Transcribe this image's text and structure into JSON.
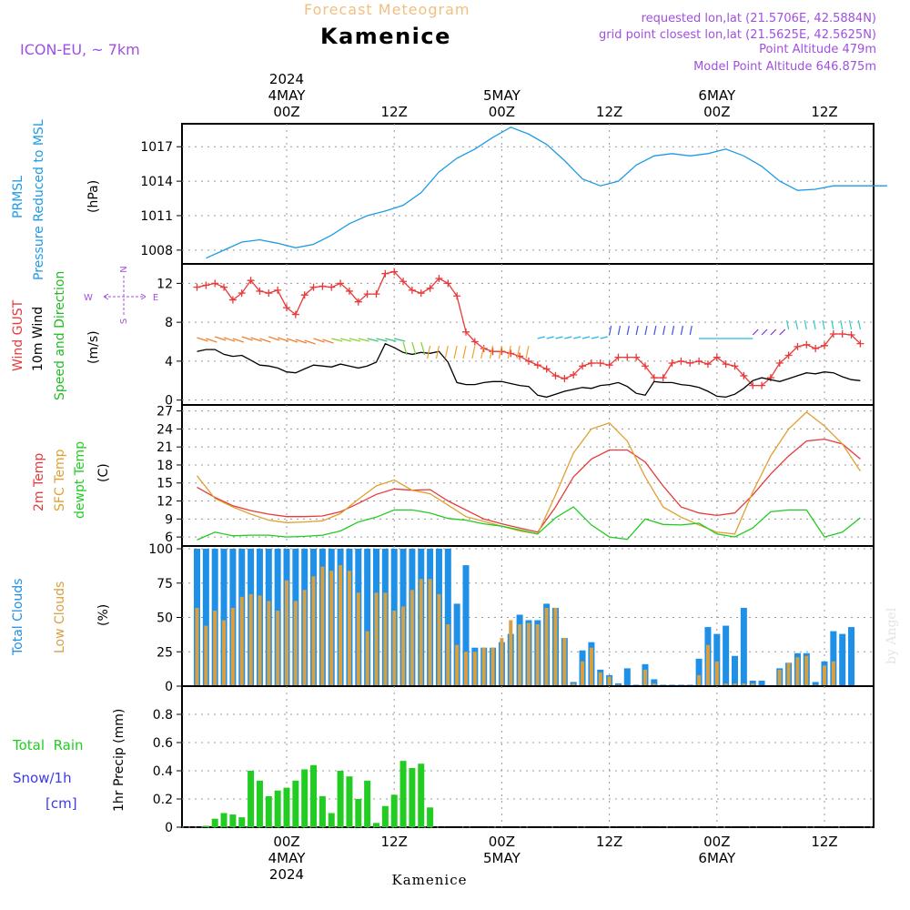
{
  "header": {
    "subtitle": "Forecast Meteogram",
    "title": "Kamenice",
    "model": "ICON-EU, ~ 7km",
    "requested": "requested lon,lat (21.5706E, 42.5884N)",
    "gridpoint": "grid point closest lon,lat (21.5625E, 42.5625N)",
    "point_altitude": "Point Altitude 479m",
    "model_altitude": "Model Point Altitude 646.875m",
    "watermark": "by Angel",
    "footer_location": "Kamenice"
  },
  "time_axis": {
    "top_labels": [
      {
        "line1": "2024",
        "line2": "4MAY",
        "line3": "00Z"
      },
      {
        "line1": "",
        "line2": "",
        "line3": "12Z"
      },
      {
        "line1": "",
        "line2": "5MAY",
        "line3": "00Z"
      },
      {
        "line1": "",
        "line2": "",
        "line3": "12Z"
      },
      {
        "line1": "",
        "line2": "6MAY",
        "line3": "00Z"
      },
      {
        "line1": "",
        "line2": "",
        "line3": "12Z"
      }
    ],
    "bottom_labels": [
      {
        "line1": "00Z",
        "line2": "4MAY",
        "line3": "2024"
      },
      {
        "line1": "12Z",
        "line2": "",
        "line3": ""
      },
      {
        "line1": "00Z",
        "line2": "5MAY",
        "line3": ""
      },
      {
        "line1": "12Z",
        "line2": "",
        "line3": ""
      },
      {
        "line1": "00Z",
        "line2": "6MAY",
        "line3": ""
      },
      {
        "line1": "12Z",
        "line2": "",
        "line3": ""
      }
    ]
  },
  "colors": {
    "pressure": "#1e9be6",
    "gust": "#e83a3a",
    "wind": "#000000",
    "wind_label": "#22bb22",
    "t2m": "#e83a3a",
    "tsfc": "#e0a030",
    "dewpt": "#22cc22",
    "total_cloud": "#1e90e8",
    "low_cloud": "#d8a040",
    "rain": "#22cc22",
    "snow": "#3a3ae8",
    "purple": "#a050e0",
    "orange_text": "#f0c080"
  },
  "chart_data": [
    {
      "type": "line",
      "panel": "pressure",
      "labels": {
        "left1": "PRMSL",
        "left2": "Pressure Reduced to MSL",
        "unit": "(hPa)"
      },
      "yticks": [
        "1008",
        "1011",
        "1014",
        "1017"
      ],
      "ylim": [
        1006.8,
        1019.0
      ],
      "x_hours": [
        -9,
        -7,
        -5,
        -3,
        -1,
        1,
        3,
        5,
        7,
        9,
        11,
        13,
        15,
        17,
        19,
        21,
        23,
        25,
        27,
        29,
        31,
        33,
        35,
        37,
        39,
        41,
        43,
        45,
        47,
        49,
        51,
        53,
        55,
        57,
        59,
        61,
        63,
        65,
        67
      ],
      "series": [
        {
          "values": [
            1007.3,
            1008.0,
            1008.7,
            1008.9,
            1008.6,
            1008.2,
            1008.5,
            1009.3,
            1010.3,
            1011.0,
            1011.4,
            1011.9,
            1013.0,
            1014.8,
            1016.0,
            1016.8,
            1017.8,
            1018.7,
            1018.1,
            1017.2,
            1015.8,
            1014.2,
            1013.6,
            1014.0,
            1015.4,
            1016.2,
            1016.4,
            1016.2,
            1016.4,
            1016.8,
            1016.2,
            1015.3,
            1014.0,
            1013.2,
            1013.3,
            1013.6,
            1013.6,
            1013.6,
            1013.6
          ]
        }
      ]
    },
    {
      "type": "line",
      "panel": "wind",
      "labels": {
        "left1": "Wind GUST",
        "left2": "10m Wind",
        "left3": "Speed and Direction",
        "unit": "(m/s)",
        "compass_n": "N",
        "compass_s": "S",
        "compass_w": "W",
        "compass_e": "E"
      },
      "yticks": [
        "0",
        "4",
        "8",
        "12"
      ],
      "ylim": [
        -0.5,
        14.0
      ],
      "x_hours": [
        -10,
        -9,
        -8,
        -7,
        -6,
        -5,
        -4,
        -3,
        -2,
        -1,
        0,
        1,
        2,
        3,
        4,
        5,
        6,
        7,
        8,
        9,
        10,
        11,
        12,
        13,
        14,
        15,
        16,
        17,
        18,
        19,
        20,
        21,
        22,
        23,
        24,
        25,
        26,
        27,
        28,
        29,
        30,
        31,
        32,
        33,
        34,
        35,
        36,
        37,
        38,
        39,
        40,
        41,
        42,
        43,
        44,
        45,
        46,
        47,
        48,
        49,
        50,
        51,
        52,
        53,
        54,
        55,
        56,
        57,
        58,
        59,
        60,
        61,
        62,
        63,
        64
      ],
      "series": [
        {
          "name": "gust",
          "values": [
            11.6,
            11.8,
            12.0,
            11.6,
            10.3,
            11.0,
            12.3,
            11.2,
            11.0,
            11.3,
            9.5,
            8.8,
            10.8,
            11.6,
            11.7,
            11.6,
            12.0,
            11.2,
            10.1,
            10.9,
            10.9,
            13.0,
            13.2,
            12.2,
            11.3,
            11.0,
            11.5,
            12.5,
            12.0,
            10.7,
            7.0,
            6.0,
            5.3,
            5.0,
            5.0,
            4.8,
            4.5,
            4.0,
            3.6,
            3.2,
            2.5,
            2.2,
            2.6,
            3.5,
            3.8,
            3.8,
            3.6,
            4.4,
            4.4,
            4.4,
            3.5,
            2.3,
            2.3,
            3.8,
            4.0,
            3.8,
            4.0,
            3.7,
            4.4,
            3.7,
            3.5,
            2.5,
            1.5,
            1.5,
            2.3,
            3.8,
            4.6,
            5.5,
            5.7,
            5.3,
            5.6,
            6.8,
            6.8,
            6.7,
            5.8
          ]
        },
        {
          "name": "wind",
          "values": [
            5.0,
            5.2,
            5.2,
            4.7,
            4.5,
            4.6,
            4.1,
            3.6,
            3.5,
            3.3,
            2.9,
            2.8,
            3.2,
            3.6,
            3.5,
            3.4,
            3.7,
            3.5,
            3.3,
            3.5,
            3.9,
            5.8,
            5.4,
            4.9,
            4.7,
            4.9,
            4.8,
            5.0,
            3.9,
            1.8,
            1.6,
            1.6,
            1.8,
            1.9,
            1.9,
            1.7,
            1.5,
            1.4,
            0.5,
            0.3,
            0.6,
            0.9,
            1.1,
            1.3,
            1.2,
            1.5,
            1.6,
            1.8,
            1.4,
            0.7,
            0.5,
            1.9,
            1.8,
            1.8,
            1.6,
            1.5,
            1.3,
            0.9,
            0.4,
            0.3,
            0.6,
            1.2,
            2.0,
            2.3,
            2.1,
            1.9,
            2.2,
            2.5,
            2.8,
            2.7,
            2.9,
            2.8,
            2.4,
            2.1,
            2.0
          ]
        }
      ]
    },
    {
      "type": "line",
      "panel": "temperature",
      "labels": {
        "left1": "2m Temp",
        "left2": "SFC Temp",
        "left3": "dewpt Temp",
        "unit": "(C)"
      },
      "yticks": [
        "6",
        "9",
        "12",
        "15",
        "18",
        "21",
        "24",
        "27"
      ],
      "ylim": [
        4.5,
        28.0
      ],
      "x_hours": [
        -10,
        -8,
        -6,
        -4,
        -2,
        0,
        2,
        4,
        6,
        8,
        10,
        12,
        14,
        16,
        18,
        20,
        22,
        24,
        26,
        28,
        30,
        32,
        34,
        36,
        38,
        40,
        42,
        44,
        46,
        48,
        50,
        52,
        54,
        56,
        58,
        60,
        62,
        64
      ],
      "series": [
        {
          "name": "2m",
          "values": [
            14.3,
            12.6,
            11.2,
            10.4,
            9.8,
            9.4,
            9.4,
            9.5,
            10.2,
            11.6,
            13.1,
            14.0,
            13.8,
            13.9,
            12.0,
            10.5,
            9.0,
            8.2,
            7.5,
            6.8,
            11.0,
            16.0,
            19.0,
            20.5,
            20.5,
            18.5,
            14.5,
            11.0,
            10.0,
            9.6,
            10.0,
            13.0,
            16.5,
            19.5,
            22.0,
            22.3,
            21.5,
            19.0
          ]
        },
        {
          "name": "sfc",
          "values": [
            16.2,
            12.4,
            11.0,
            9.8,
            8.8,
            8.4,
            8.5,
            8.7,
            9.9,
            12.3,
            14.5,
            15.5,
            13.8,
            13.2,
            11.3,
            9.4,
            8.6,
            7.8,
            7.0,
            6.5,
            13.0,
            20.0,
            24.0,
            25.0,
            22.0,
            16.0,
            11.0,
            9.3,
            8.0,
            6.8,
            6.5,
            13.5,
            19.5,
            24.0,
            26.8,
            24.5,
            21.5,
            17.0
          ]
        },
        {
          "name": "dewpt",
          "values": [
            5.5,
            6.8,
            6.2,
            6.3,
            6.3,
            6.0,
            6.1,
            6.3,
            7.0,
            8.5,
            9.3,
            10.5,
            10.5,
            10.0,
            9.1,
            8.8,
            8.2,
            7.8,
            7.2,
            6.5,
            9.2,
            11.0,
            8.0,
            6.0,
            5.6,
            9.0,
            8.1,
            8.0,
            8.3,
            6.5,
            6.0,
            7.5,
            10.2,
            10.5,
            10.5,
            6.0,
            6.8,
            9.2
          ]
        }
      ]
    },
    {
      "type": "bar",
      "panel": "clouds",
      "labels": {
        "left1": "Total Clouds",
        "left2": "Low Clouds",
        "unit": "(%)"
      },
      "yticks": [
        "0",
        "25",
        "50",
        "75",
        "100"
      ],
      "ylim": [
        0,
        102
      ],
      "x_hours": [
        -10,
        -9,
        -8,
        -7,
        -6,
        -5,
        -4,
        -3,
        -2,
        -1,
        0,
        1,
        2,
        3,
        4,
        5,
        6,
        7,
        8,
        9,
        10,
        11,
        12,
        13,
        14,
        15,
        16,
        17,
        18,
        19,
        20,
        21,
        22,
        23,
        24,
        25,
        26,
        27,
        28,
        29,
        30,
        31,
        32,
        33,
        34,
        35,
        36,
        37,
        38,
        39,
        40,
        41,
        42,
        43,
        44,
        45,
        46,
        47,
        48,
        49,
        50,
        51,
        52,
        53,
        54,
        55,
        56,
        57,
        58,
        59,
        60,
        61,
        62,
        63,
        64
      ],
      "series": [
        {
          "name": "total",
          "values": [
            100,
            100,
            100,
            100,
            100,
            100,
            100,
            100,
            100,
            100,
            100,
            100,
            100,
            100,
            100,
            100,
            100,
            100,
            100,
            100,
            100,
            100,
            100,
            100,
            100,
            100,
            100,
            100,
            100,
            60,
            88,
            28,
            28,
            28,
            32,
            38,
            52,
            48,
            48,
            60,
            57,
            35,
            3,
            26,
            32,
            12,
            8,
            2,
            13,
            1,
            16,
            5,
            1,
            1,
            1,
            1,
            20,
            43,
            38,
            44,
            22,
            57,
            4,
            4,
            0,
            13,
            17,
            24,
            24,
            3,
            18,
            40,
            38,
            43,
            0
          ]
        },
        {
          "name": "low",
          "values": [
            57,
            44,
            55,
            48,
            57,
            65,
            67,
            66,
            62,
            55,
            77,
            62,
            70,
            80,
            87,
            84,
            88,
            84,
            68,
            40,
            68,
            68,
            55,
            58,
            70,
            78,
            78,
            67,
            45,
            30,
            25,
            25,
            28,
            28,
            35,
            48,
            45,
            46,
            45,
            57,
            57,
            35,
            2,
            18,
            28,
            10,
            7,
            1,
            0,
            0,
            12,
            2,
            0,
            0,
            0,
            0,
            8,
            30,
            18,
            2,
            2,
            2,
            2,
            0,
            0,
            12,
            17,
            21,
            22,
            1,
            15,
            18,
            0,
            0,
            0
          ]
        }
      ]
    },
    {
      "type": "bar",
      "panel": "precip",
      "labels": {
        "left1": "Total  Rain",
        "left2": "Snow/1h",
        "left3": "[cm]",
        "unit": "1hr Precip (mm)"
      },
      "yticks": [
        "0",
        "0.2",
        "0.4",
        "0.6",
        "0.8"
      ],
      "ylim": [
        0,
        1.0
      ],
      "x_hours": [
        -9,
        -8,
        -7,
        -6,
        -5,
        -4,
        -3,
        -2,
        -1,
        0,
        1,
        2,
        3,
        4,
        5,
        6,
        7,
        8,
        9,
        10,
        11,
        12,
        13,
        14,
        15,
        16
      ],
      "series": [
        {
          "name": "rain",
          "values": [
            0.01,
            0.06,
            0.1,
            0.09,
            0.07,
            0.4,
            0.33,
            0.22,
            0.26,
            0.28,
            0.33,
            0.41,
            0.44,
            0.22,
            0.1,
            0.4,
            0.36,
            0.2,
            0.33,
            0.03,
            0.15,
            0.23,
            0.47,
            0.42,
            0.45,
            0.14
          ]
        }
      ]
    }
  ]
}
